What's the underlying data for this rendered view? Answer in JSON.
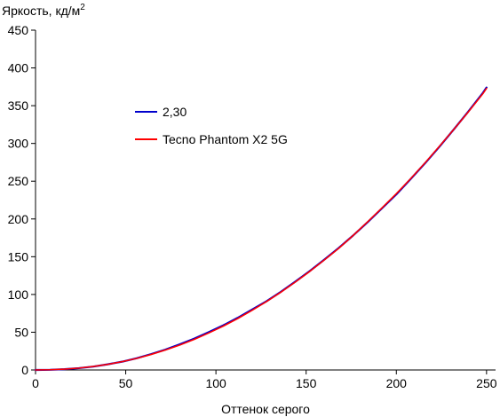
{
  "chart_data": {
    "type": "line",
    "title": "",
    "xlabel": "Оттенок серого",
    "ylabel_main": "Яркость, кд/м",
    "ylabel_sup": "2",
    "xlim": [
      0,
      255
    ],
    "ylim": [
      0,
      450
    ],
    "x_ticks": [
      0,
      50,
      100,
      150,
      200,
      250
    ],
    "y_ticks": [
      0,
      50,
      100,
      150,
      200,
      250,
      300,
      350,
      400,
      450
    ],
    "grid": false,
    "legend_position": "upper-left-inside",
    "series": [
      {
        "name": "2,30",
        "color": "#0000cc",
        "x": [
          0,
          8,
          16,
          24,
          32,
          40,
          48,
          56,
          64,
          72,
          80,
          88,
          96,
          104,
          112,
          120,
          128,
          136,
          144,
          152,
          160,
          168,
          176,
          184,
          192,
          200,
          208,
          216,
          224,
          232,
          240,
          248,
          250
        ],
        "y": [
          0,
          0.2,
          1,
          2.4,
          4.5,
          7.5,
          11,
          15.5,
          21,
          27,
          34,
          41.5,
          50,
          59,
          69,
          80,
          91,
          103.5,
          117,
          131,
          146,
          161.5,
          178,
          195.5,
          214,
          232.5,
          253,
          274,
          296,
          319,
          342.5,
          367,
          374
        ]
      },
      {
        "name": "Tecno Phantom X2 5G",
        "color": "#ff0000",
        "x": [
          0,
          8,
          16,
          24,
          32,
          40,
          48,
          56,
          64,
          72,
          80,
          88,
          96,
          104,
          112,
          120,
          128,
          136,
          144,
          152,
          160,
          168,
          176,
          184,
          192,
          200,
          208,
          216,
          224,
          232,
          240,
          248,
          250
        ],
        "y": [
          0,
          0.3,
          1.1,
          2.5,
          4.6,
          7.4,
          11,
          15.3,
          20.5,
          26.5,
          33,
          40.5,
          49,
          58,
          68,
          79,
          90.5,
          103,
          116.5,
          130.5,
          145.5,
          161,
          178,
          196,
          214.5,
          233.5,
          253.5,
          274.5,
          296.5,
          319,
          342,
          366,
          373
        ]
      }
    ]
  }
}
